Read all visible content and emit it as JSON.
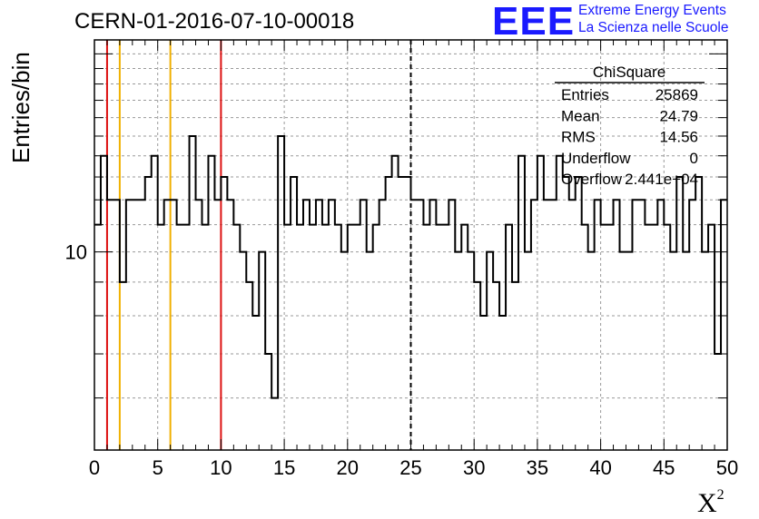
{
  "title": "CERN-01-2016-07-10-00018",
  "logo": {
    "mark": "EEE",
    "line1": "Extreme Energy Events",
    "line2": "La Scienza nelle Scuole",
    "color": "#1a1aff"
  },
  "stats_box": {
    "name": "ChiSquare",
    "rows": [
      {
        "label": "Entries",
        "value": "25869"
      },
      {
        "label": "Mean",
        "value": "24.79"
      },
      {
        "label": "RMS",
        "value": "14.56"
      },
      {
        "label": "Underflow",
        "value": "0"
      },
      {
        "label": "Overflow",
        "value": "2.441e+04"
      }
    ]
  },
  "chart_data": {
    "type": "histogram",
    "title": "CERN-01-2016-07-10-00018",
    "xlabel": "X²",
    "ylabel": "Entries/bin",
    "xlim": [
      0,
      50
    ],
    "ylim": [
      5,
      21
    ],
    "y_scale": "log",
    "grid": true,
    "x_ticks": [
      0,
      5,
      10,
      15,
      20,
      25,
      30,
      35,
      40,
      45,
      50
    ],
    "y_tick_labels": [
      {
        "value": 10,
        "label": "10"
      }
    ],
    "bin_width": 0.5,
    "values": [
      11,
      14,
      12,
      12,
      9,
      12,
      12,
      12,
      13,
      14,
      11,
      12,
      12,
      11,
      11,
      15,
      12,
      11,
      14,
      12,
      13,
      12,
      11,
      10,
      9,
      8,
      10,
      7,
      6,
      15,
      11,
      13,
      11,
      12,
      11,
      12,
      11,
      12,
      11,
      10,
      11,
      11,
      12,
      10,
      11,
      12,
      13,
      14,
      13,
      13,
      12,
      12,
      11,
      12,
      11,
      11,
      12,
      10,
      11,
      10,
      9,
      8,
      10,
      9,
      8,
      11,
      9,
      14,
      10,
      12,
      14,
      12,
      12,
      14,
      13,
      12,
      13,
      11,
      10,
      12,
      11,
      11,
      12,
      10,
      10,
      12,
      12,
      11,
      11,
      12,
      11,
      10,
      13,
      10,
      12,
      13,
      10,
      11,
      7,
      12
    ],
    "vertical_lines": [
      {
        "x": 1,
        "color": "#dd1111"
      },
      {
        "x": 2,
        "color": "#f0b000"
      },
      {
        "x": 6,
        "color": "#f0b000"
      },
      {
        "x": 10,
        "color": "#dd1111"
      },
      {
        "x": 25,
        "color": "#000000",
        "style": "dashed"
      }
    ]
  }
}
